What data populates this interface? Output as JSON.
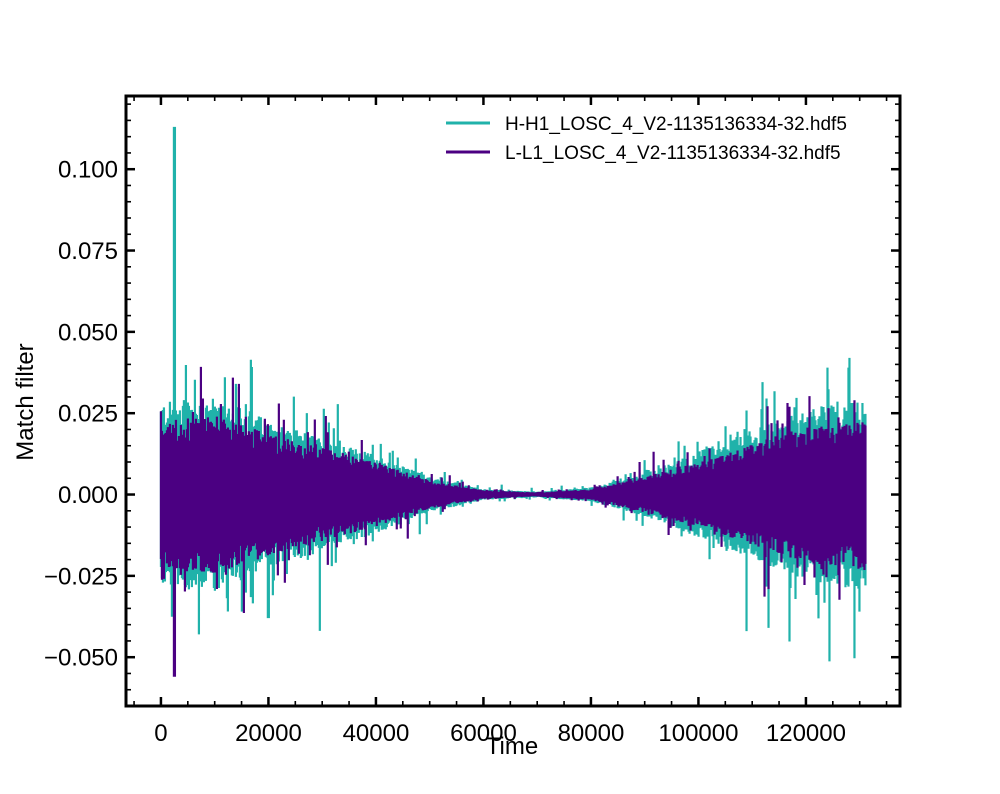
{
  "chart_data": {
    "type": "line",
    "title": "",
    "xlabel": "Time",
    "ylabel": "Match filter",
    "xlim": [
      -6500,
      137500
    ],
    "ylim": [
      -0.065,
      0.1225
    ],
    "x_ticks": [
      0,
      20000,
      40000,
      60000,
      80000,
      100000,
      120000
    ],
    "x_tick_labels": [
      "0",
      "20000",
      "40000",
      "60000",
      "80000",
      "100000",
      "120000"
    ],
    "y_ticks": [
      -0.05,
      -0.025,
      0.0,
      0.025,
      0.05,
      0.075,
      0.1
    ],
    "y_tick_labels": [
      "−0.050",
      "−0.025",
      "0.000",
      "0.025",
      "0.050",
      "0.075",
      "0.100"
    ],
    "x_minor_step": 5000,
    "y_minor_step": 0.005,
    "grid": false,
    "legend_position": "top-right",
    "samples": 131072,
    "series": [
      {
        "name": "H-H1_LOSC_4_V2-1135136334-32.hdf5",
        "color": "#20b2aa",
        "envelope": [
          [
            0,
            0.026
          ],
          [
            10000,
            0.027
          ],
          [
            20000,
            0.021
          ],
          [
            30000,
            0.016
          ],
          [
            40000,
            0.011
          ],
          [
            50000,
            0.005
          ],
          [
            60000,
            0.0015
          ],
          [
            70000,
            0.0008
          ],
          [
            80000,
            0.002
          ],
          [
            90000,
            0.006
          ],
          [
            100000,
            0.012
          ],
          [
            110000,
            0.018
          ],
          [
            120000,
            0.024
          ],
          [
            131000,
            0.027
          ]
        ],
        "peaks": [
          [
            2500,
            0.113
          ],
          [
            7000,
            -0.043
          ],
          [
            14000,
            0.034
          ],
          [
            20000,
            -0.038
          ],
          [
            109000,
            -0.042
          ],
          [
            113000,
            -0.041
          ],
          [
            124000,
            0.039
          ],
          [
            128000,
            0.039
          ],
          [
            130000,
            -0.036
          ]
        ]
      },
      {
        "name": "L-L1_LOSC_4_V2-1135136334-32.hdf5",
        "color": "#4b0082",
        "envelope": [
          [
            0,
            0.021
          ],
          [
            10000,
            0.022
          ],
          [
            20000,
            0.017
          ],
          [
            30000,
            0.013
          ],
          [
            40000,
            0.009
          ],
          [
            50000,
            0.004
          ],
          [
            60000,
            0.0012
          ],
          [
            70000,
            0.0006
          ],
          [
            80000,
            0.0015
          ],
          [
            90000,
            0.005
          ],
          [
            100000,
            0.009
          ],
          [
            110000,
            0.014
          ],
          [
            120000,
            0.019
          ],
          [
            131000,
            0.021
          ]
        ],
        "peaks": [
          [
            2500,
            -0.056
          ],
          [
            14500,
            0.034
          ],
          [
            22000,
            0.028
          ],
          [
            117000,
            0.027
          ],
          [
            129000,
            0.029
          ]
        ]
      }
    ]
  }
}
